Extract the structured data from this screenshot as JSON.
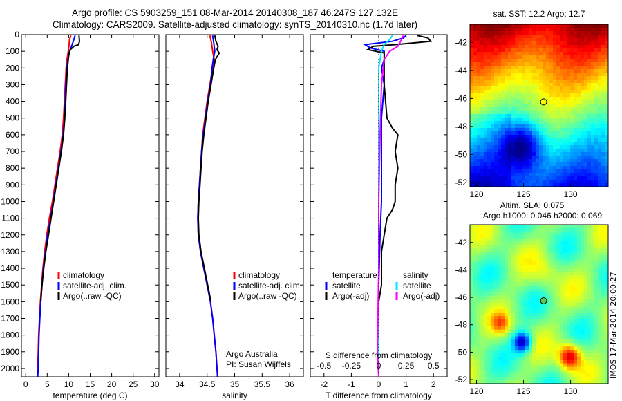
{
  "title": {
    "line1": "Argo profile: CS 5903259_151 08-Mar-2014 20140308_187 46.247S 127.132E",
    "line2": "Climatology: CARS2009. Satellite-adjusted climatology: synTS_20140310.nc (1.7d later)"
  },
  "timestamp": "IMOS 17-Mar-2014 20:00:27",
  "colors": {
    "climatology": "#ff0000",
    "satellite": "#0000ff",
    "argo": "#000000",
    "satellite_s": "#00e5ff",
    "argo_s": "#ff00ff"
  },
  "chart_data": [
    {
      "type": "line",
      "panel": "temperature",
      "xlabel": "temperature (deg C)",
      "ylabel": "",
      "xlim": [
        -1,
        31
      ],
      "ylim": [
        2050,
        0
      ],
      "xticks": [
        0,
        5,
        10,
        15,
        20,
        25,
        30
      ],
      "yticks": [
        0,
        100,
        200,
        300,
        400,
        500,
        600,
        700,
        800,
        900,
        1000,
        1100,
        1200,
        1300,
        1400,
        1500,
        1600,
        1700,
        1800,
        1900,
        2000
      ],
      "legend": [
        "climatology",
        "satellite-adj. clim.",
        "Argo(..raw -QC)"
      ],
      "series": [
        {
          "name": "climatology",
          "color": "#ff0000",
          "points": [
            [
              10.5,
              5
            ],
            [
              10.2,
              30
            ],
            [
              10.1,
              60
            ],
            [
              9.9,
              100
            ],
            [
              9.6,
              150
            ],
            [
              9.4,
              200
            ],
            [
              9.2,
              300
            ],
            [
              9.0,
              400
            ],
            [
              8.8,
              500
            ],
            [
              8.5,
              600
            ],
            [
              8.0,
              700
            ],
            [
              7.4,
              800
            ],
            [
              6.8,
              900
            ],
            [
              6.2,
              1000
            ],
            [
              5.5,
              1100
            ],
            [
              4.9,
              1200
            ],
            [
              4.4,
              1300
            ],
            [
              4.0,
              1400
            ],
            [
              3.7,
              1500
            ],
            [
              3.4,
              1600
            ],
            [
              3.2,
              1700
            ],
            [
              3.0,
              1800
            ],
            [
              2.9,
              1900
            ],
            [
              2.8,
              2000
            ],
            [
              2.7,
              2050
            ]
          ]
        },
        {
          "name": "satellite-adj. clim.",
          "color": "#0000ff",
          "points": [
            [
              11.5,
              5
            ],
            [
              11.2,
              30
            ],
            [
              10.8,
              60
            ],
            [
              10.2,
              100
            ],
            [
              9.8,
              150
            ],
            [
              9.6,
              200
            ],
            [
              9.3,
              300
            ],
            [
              9.2,
              400
            ],
            [
              9.0,
              500
            ],
            [
              8.7,
              600
            ],
            [
              8.2,
              700
            ],
            [
              7.6,
              800
            ],
            [
              7.0,
              900
            ],
            [
              6.4,
              1000
            ],
            [
              5.8,
              1100
            ],
            [
              5.1,
              1200
            ],
            [
              4.6,
              1300
            ],
            [
              4.1,
              1400
            ],
            [
              3.8,
              1500
            ],
            [
              3.5,
              1600
            ],
            [
              3.3,
              1700
            ],
            [
              3.1,
              1800
            ],
            [
              3.0,
              1900
            ],
            [
              2.9,
              2000
            ],
            [
              2.8,
              2050
            ]
          ]
        },
        {
          "name": "Argo(..raw -QC)",
          "color": "#000000",
          "points": [
            [
              12.4,
              5
            ],
            [
              12.5,
              40
            ],
            [
              12.3,
              60
            ],
            [
              11.2,
              70
            ],
            [
              10.4,
              90
            ],
            [
              10.1,
              110
            ],
            [
              9.9,
              150
            ],
            [
              9.7,
              200
            ],
            [
              9.5,
              300
            ],
            [
              9.3,
              400
            ],
            [
              9.1,
              500
            ],
            [
              8.8,
              600
            ],
            [
              8.3,
              700
            ],
            [
              7.7,
              800
            ],
            [
              7.1,
              900
            ],
            [
              6.5,
              1000
            ],
            [
              5.9,
              1100
            ],
            [
              5.3,
              1200
            ],
            [
              4.7,
              1300
            ],
            [
              4.2,
              1400
            ],
            [
              3.8,
              1500
            ],
            [
              3.5,
              1600
            ]
          ]
        }
      ]
    },
    {
      "type": "line",
      "panel": "salinity",
      "xlabel": "salinity",
      "xlim": [
        33.75,
        36.25
      ],
      "ylim": [
        2050,
        0
      ],
      "xticks": [
        34,
        34.5,
        35,
        35.5,
        36
      ],
      "legend": [
        "climatology",
        "satellite-adj. clim.",
        "Argo(..raw -QC)"
      ],
      "annotation": [
        "Argo Australia",
        "PI: Susan Wijffels"
      ],
      "series": [
        {
          "name": "climatology",
          "color": "#ff0000",
          "points": [
            [
              34.55,
              5
            ],
            [
              34.58,
              50
            ],
            [
              34.6,
              100
            ],
            [
              34.63,
              150
            ],
            [
              34.6,
              200
            ],
            [
              34.55,
              300
            ],
            [
              34.5,
              400
            ],
            [
              34.46,
              500
            ],
            [
              34.42,
              600
            ],
            [
              34.4,
              700
            ],
            [
              34.38,
              800
            ],
            [
              34.36,
              900
            ],
            [
              34.34,
              1000
            ],
            [
              34.33,
              1100
            ],
            [
              34.34,
              1200
            ],
            [
              34.38,
              1300
            ],
            [
              34.44,
              1400
            ],
            [
              34.5,
              1500
            ],
            [
              34.56,
              1600
            ],
            [
              34.6,
              1700
            ],
            [
              34.63,
              1800
            ],
            [
              34.66,
              1900
            ],
            [
              34.68,
              2000
            ],
            [
              34.69,
              2050
            ]
          ]
        },
        {
          "name": "satellite-adj. clim.",
          "color": "#0000ff",
          "points": [
            [
              34.6,
              5
            ],
            [
              34.62,
              50
            ],
            [
              34.64,
              100
            ],
            [
              34.61,
              150
            ],
            [
              34.59,
              200
            ],
            [
              34.56,
              300
            ],
            [
              34.51,
              400
            ],
            [
              34.47,
              500
            ],
            [
              34.43,
              600
            ],
            [
              34.4,
              700
            ],
            [
              34.38,
              800
            ],
            [
              34.36,
              900
            ],
            [
              34.34,
              1000
            ],
            [
              34.33,
              1100
            ],
            [
              34.34,
              1200
            ],
            [
              34.38,
              1300
            ],
            [
              34.44,
              1400
            ],
            [
              34.5,
              1500
            ],
            [
              34.56,
              1600
            ],
            [
              34.6,
              1700
            ],
            [
              34.63,
              1800
            ],
            [
              34.66,
              1900
            ],
            [
              34.68,
              2000
            ],
            [
              34.69,
              2050
            ]
          ]
        },
        {
          "name": "Argo(..raw -QC)",
          "color": "#000000",
          "points": [
            [
              34.64,
              5
            ],
            [
              34.66,
              40
            ],
            [
              34.7,
              70
            ],
            [
              34.68,
              90
            ],
            [
              34.72,
              110
            ],
            [
              34.65,
              150
            ],
            [
              34.62,
              200
            ],
            [
              34.57,
              300
            ],
            [
              34.52,
              400
            ],
            [
              34.48,
              500
            ],
            [
              34.44,
              600
            ],
            [
              34.41,
              700
            ],
            [
              34.39,
              800
            ],
            [
              34.37,
              900
            ],
            [
              34.35,
              1000
            ],
            [
              34.34,
              1100
            ],
            [
              34.35,
              1200
            ],
            [
              34.39,
              1300
            ],
            [
              34.45,
              1400
            ],
            [
              34.51,
              1500
            ],
            [
              34.57,
              1600
            ]
          ]
        }
      ]
    },
    {
      "type": "line",
      "panel": "difference",
      "xlabel": "T difference from climatology",
      "x2label": "S difference from climatology",
      "xlim": [
        -2.5,
        2.5
      ],
      "ylim": [
        2050,
        0
      ],
      "xticks": [
        -2,
        -1,
        0,
        1,
        2
      ],
      "x2ticks": [
        "-0.5",
        "-0.25",
        "0",
        "0.25",
        "0.5"
      ],
      "x2tick_positions": [
        -2,
        -1,
        0,
        1,
        2
      ],
      "legend_headers": [
        "temperature",
        "salinity"
      ],
      "legend": [
        "satellite",
        "Argo(-adj)",
        "satellite",
        "Argo(-adj)"
      ],
      "series": [
        {
          "name": "satellite",
          "color": "#0000ff",
          "points": [
            [
              1.0,
              5
            ],
            [
              0.9,
              20
            ],
            [
              0.5,
              40
            ],
            [
              -0.5,
              60
            ],
            [
              -0.3,
              80
            ],
            [
              0.2,
              100
            ],
            [
              0.2,
              150
            ],
            [
              0.1,
              200
            ],
            [
              0.2,
              300
            ],
            [
              0.1,
              500
            ],
            [
              0.1,
              700
            ],
            [
              0.1,
              1000
            ],
            [
              0.05,
              1200
            ],
            [
              0.0,
              1500
            ],
            [
              0.0,
              2000
            ],
            [
              0.0,
              2050
            ]
          ]
        },
        {
          "name": "Argo(-adj)",
          "color": "#000000",
          "points": [
            [
              1.4,
              5
            ],
            [
              1.8,
              20
            ],
            [
              1.9,
              40
            ],
            [
              0.6,
              60
            ],
            [
              -0.2,
              70
            ],
            [
              -0.4,
              90
            ],
            [
              0.2,
              110
            ],
            [
              0.2,
              150
            ],
            [
              0.2,
              200
            ],
            [
              0.2,
              300
            ],
            [
              0.3,
              500
            ],
            [
              0.5,
              560
            ],
            [
              0.7,
              600
            ],
            [
              0.6,
              700
            ],
            [
              0.7,
              800
            ],
            [
              0.6,
              900
            ],
            [
              0.6,
              1000
            ],
            [
              0.5,
              1050
            ],
            [
              0.3,
              1100
            ],
            [
              0.2,
              1200
            ],
            [
              0.1,
              1300
            ],
            [
              0.1,
              1400
            ],
            [
              0.1,
              1500
            ],
            [
              0.0,
              1600
            ]
          ]
        },
        {
          "name": "satellite",
          "color": "#00e5ff",
          "points": [
            [
              0.5,
              5
            ],
            [
              0.4,
              30
            ],
            [
              0.2,
              60
            ],
            [
              0.1,
              100
            ],
            [
              0.0,
              200
            ],
            [
              0.0,
              400
            ],
            [
              0.0,
              800
            ],
            [
              0.0,
              1200
            ],
            [
              0.0,
              1600
            ],
            [
              0.0,
              2000
            ],
            [
              0.0,
              2050
            ]
          ]
        },
        {
          "name": "Argo(-adj)",
          "color": "#ff00ff",
          "points": [
            [
              0.9,
              5
            ],
            [
              0.8,
              40
            ],
            [
              0.7,
              70
            ],
            [
              0.4,
              100
            ],
            [
              0.2,
              150
            ],
            [
              0.1,
              300
            ],
            [
              0.05,
              600
            ],
            [
              0.0,
              1000
            ],
            [
              0.0,
              1400
            ],
            [
              -0.05,
              1900
            ],
            [
              0.0,
              2050
            ]
          ]
        }
      ]
    },
    {
      "type": "heatmap",
      "panel": "sst-map",
      "title": "sat. SST: 12.2  Argo: 12.7",
      "xlim": [
        119.3,
        134
      ],
      "ylim": [
        -52.3,
        -40.7
      ],
      "xticks": [
        120,
        125,
        130
      ],
      "yticks": [
        -42,
        -44,
        -46,
        -48,
        -50,
        -52
      ],
      "marker": {
        "lon": 127.132,
        "lat": -46.247,
        "fill": "#ffff00"
      }
    },
    {
      "type": "heatmap",
      "panel": "sla-map",
      "title_lines": [
        "Altim. SLA: 0.075",
        "Argo h1000: 0.046 h2000: 0.069"
      ],
      "xlim": [
        119.3,
        134
      ],
      "ylim": [
        -52.3,
        -40.7
      ],
      "xticks": [
        120,
        125,
        130
      ],
      "yticks": [
        -42,
        -44,
        -46,
        -48,
        -50,
        -52
      ],
      "marker": {
        "lon": 127.132,
        "lat": -46.247,
        "fill": "#55cc55"
      }
    }
  ]
}
